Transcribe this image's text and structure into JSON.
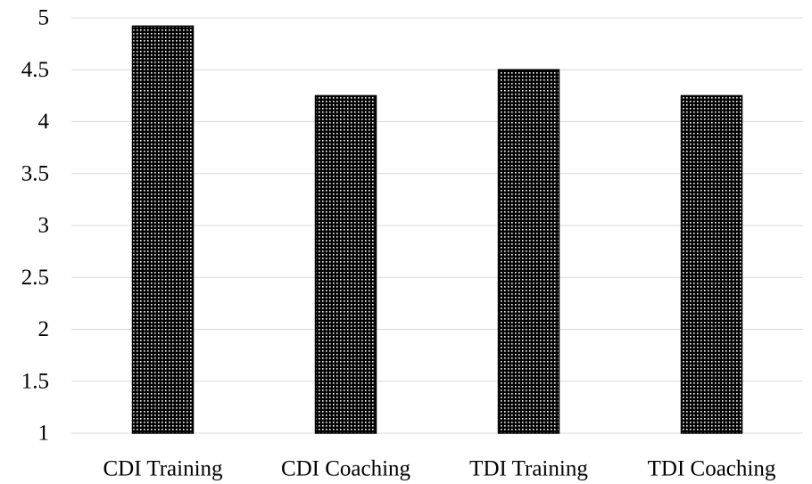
{
  "chart_data": {
    "type": "bar",
    "categories": [
      "CDI Training",
      "CDI Coaching",
      "TDI Training",
      "TDI Coaching"
    ],
    "values": [
      4.92,
      4.25,
      4.5,
      4.25
    ],
    "ylim": [
      1,
      5
    ],
    "y_ticks": [
      "1",
      "1.5",
      "2",
      "2.5",
      "3",
      "3.5",
      "4",
      "4.5",
      "5"
    ],
    "grid": true,
    "legend": "none",
    "title": "",
    "xlabel": "",
    "ylabel": ""
  },
  "colors": {
    "bar_fill": "#000000",
    "bar_dots": "#ffffff",
    "grid": "#d9d9d9"
  }
}
